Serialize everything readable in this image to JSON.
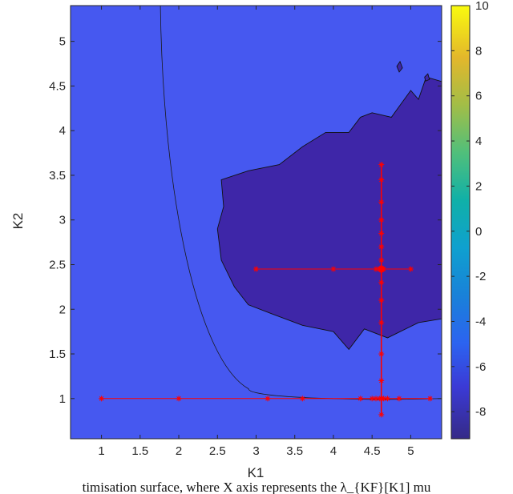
{
  "chart_data": {
    "type": "heatmap",
    "title": "",
    "xlabel": "K1",
    "ylabel": "K2",
    "xlim": [
      0.6,
      5.4
    ],
    "ylim": [
      0.55,
      5.4
    ],
    "x_ticks": [
      "1",
      "1.5",
      "2",
      "2.5",
      "3",
      "3.5",
      "4",
      "4.5",
      "5"
    ],
    "y_ticks": [
      "1",
      "1.5",
      "2",
      "2.5",
      "3",
      "3.5",
      "4",
      "4.5",
      "5"
    ],
    "colorbar": {
      "range": [
        -9.2,
        10
      ],
      "ticks": [
        "10",
        "8",
        "6",
        "4",
        "2",
        "0",
        "-2",
        "-4",
        "-6",
        "-8"
      ],
      "colormap": "parula"
    },
    "contour_levels": [
      -8,
      -7,
      -5,
      -3,
      -1,
      1,
      3,
      5,
      7
    ],
    "minimum_region_color": "#3e26a8",
    "search_path_color": "#ff0000",
    "search_path": {
      "horizontal_k2_1": [
        1.0,
        2.0,
        3.15,
        3.6,
        4.35,
        4.5,
        4.55,
        4.6,
        4.65,
        4.7,
        4.85,
        5.25
      ],
      "horizontal_k2_2_45": [
        3.0,
        4.0,
        4.55,
        4.6,
        4.65,
        5.0
      ],
      "vertical_k1_4_62": [
        0.82,
        1.0,
        1.2,
        1.5,
        1.85,
        2.1,
        2.3,
        2.45,
        2.55,
        2.7,
        2.85,
        3.0,
        3.2,
        3.45,
        3.62
      ]
    },
    "caption": "timisation surface, where X axis represents the λ_{KF}[K1] mu"
  }
}
